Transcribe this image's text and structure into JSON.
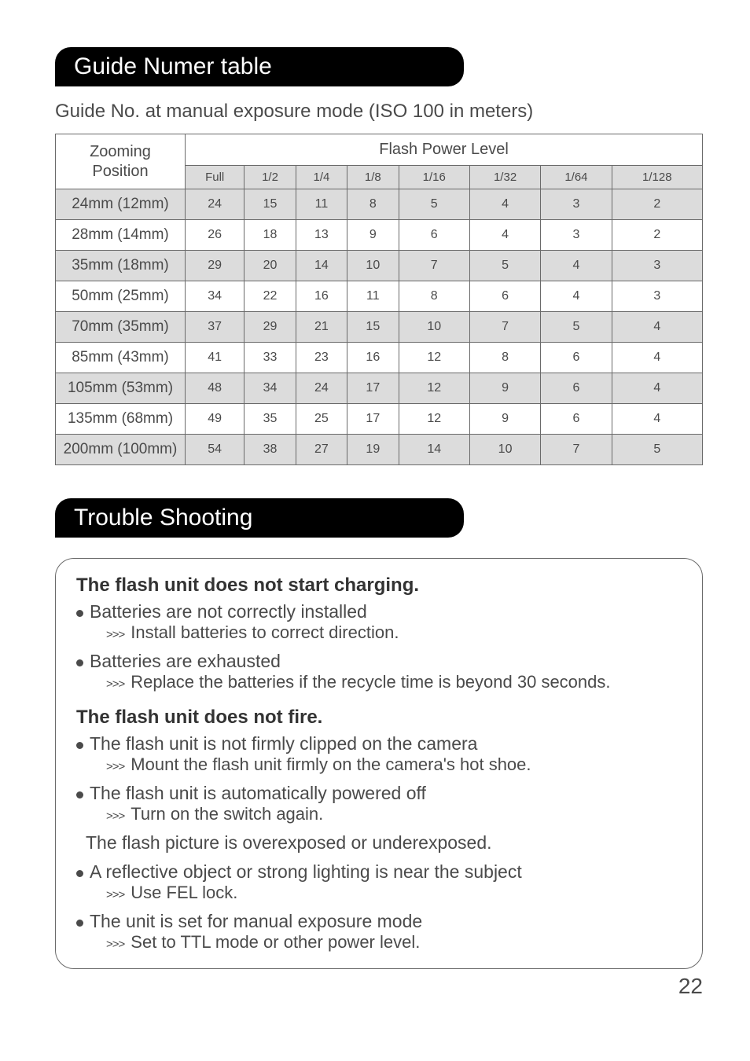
{
  "headers": {
    "guide_table": "Guide Numer table",
    "trouble": "Trouble Shooting"
  },
  "subtitle": "Guide No. at manual exposure mode (ISO 100 in meters)",
  "table": {
    "zoom_header_line1": "Zooming",
    "zoom_header_line2": "Position",
    "flash_header": "Flash Power Level",
    "columns": [
      "Full",
      "1/2",
      "1/4",
      "1/8",
      "1/16",
      "1/32",
      "1/64",
      "1/128"
    ],
    "rows": [
      {
        "label": "24mm (12mm)",
        "vals": [
          "24",
          "15",
          "11",
          "8",
          "5",
          "4",
          "3",
          "2"
        ],
        "shade": true
      },
      {
        "label": "28mm (14mm)",
        "vals": [
          "26",
          "18",
          "13",
          "9",
          "6",
          "4",
          "3",
          "2"
        ],
        "shade": false
      },
      {
        "label": "35mm (18mm)",
        "vals": [
          "29",
          "20",
          "14",
          "10",
          "7",
          "5",
          "4",
          "3"
        ],
        "shade": true
      },
      {
        "label": "50mm (25mm)",
        "vals": [
          "34",
          "22",
          "16",
          "11",
          "8",
          "6",
          "4",
          "3"
        ],
        "shade": false
      },
      {
        "label": "70mm (35mm)",
        "vals": [
          "37",
          "29",
          "21",
          "15",
          "10",
          "7",
          "5",
          "4"
        ],
        "shade": true
      },
      {
        "label": "85mm (43mm)",
        "vals": [
          "41",
          "33",
          "23",
          "16",
          "12",
          "8",
          "6",
          "4"
        ],
        "shade": false
      },
      {
        "label": "105mm (53mm)",
        "vals": [
          "48",
          "34",
          "24",
          "17",
          "12",
          "9",
          "6",
          "4"
        ],
        "shade": true
      },
      {
        "label": "135mm (68mm)",
        "vals": [
          "49",
          "35",
          "25",
          "17",
          "12",
          "9",
          "6",
          "4"
        ],
        "shade": false
      },
      {
        "label": "200mm (100mm)",
        "vals": [
          "54",
          "38",
          "27",
          "19",
          "14",
          "10",
          "7",
          "5"
        ],
        "shade": true
      }
    ]
  },
  "trouble": {
    "s1": {
      "title": "The flash unit does not start charging.",
      "i1": {
        "cause": "Batteries are not correctly installed",
        "fix": "Install batteries to correct direction."
      },
      "i2": {
        "cause": "Batteries are exhausted",
        "fix": "Replace the batteries if the recycle time is beyond 30 seconds."
      }
    },
    "s2": {
      "title": "The flash unit does not fire.",
      "i1": {
        "cause": "The flash unit is not firmly clipped on the camera",
        "fix": "Mount the flash unit firmly on the camera's hot shoe."
      },
      "i2": {
        "cause": "The flash unit is automatically powered off",
        "fix": "Turn on the switch again."
      }
    },
    "s3": {
      "title_plain": "The flash picture is overexposed or underexposed.",
      "i1": {
        "cause": "A reflective object or strong lighting is near the subject",
        "fix": "Use FEL lock."
      },
      "i2": {
        "cause": "The unit is set for manual exposure mode",
        "fix": "Set to TTL mode or other power level."
      }
    }
  },
  "page": "22",
  "style": {
    "header_bg": "#000000",
    "header_fg": "#ffffff",
    "text_color": "#4a4a4a",
    "shade_bg": "#dcdcdc",
    "border_color": "#6a6a6a",
    "page_bg": "#ffffff"
  }
}
